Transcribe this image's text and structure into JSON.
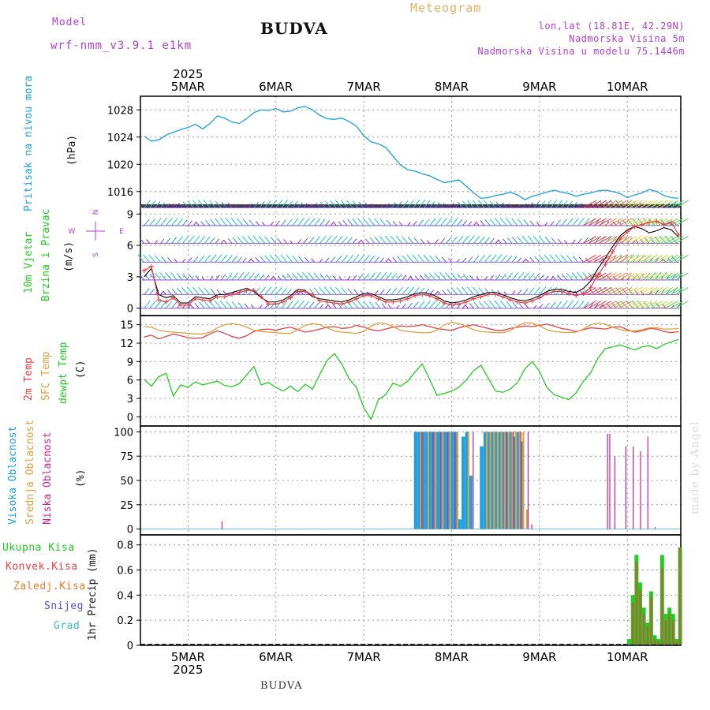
{
  "header": {
    "model_label": "Model",
    "model_name": "wrf-nmm_v3.9.1 e1km",
    "station": "BUDVA",
    "chart_kind": "Meteogram",
    "coords": "lon,lat (18.81E, 42.29N)",
    "elevation": "Nadmorska Visina 5m",
    "model_elevation": "Nadmorska Visina u modelu 75.1446m",
    "footer_station": "BUDVA",
    "watermark": "made by Angel"
  },
  "colors": {
    "pressure": "#1ca0e0",
    "wind_speed": "#e84040",
    "wind_gust": "#000000",
    "temp2m": "#e84040",
    "sfc": "#e0a040",
    "dewpt": "#22cc22",
    "high_cloud": "#1ca0e0",
    "mid_cloud": "#e0a040",
    "low_cloud": "#cc2090",
    "total_precip": "#22cc22",
    "conv_precip": "#e84040",
    "frozen": "#f07a2a",
    "snow": "#5050e0",
    "graupel": "#30c0c0",
    "purple_text": "#b040d0",
    "wind_label": "#22cc22"
  },
  "chart_data": [
    {
      "type": "line",
      "name": "pressure",
      "year_label": "2025",
      "x_tick_labels": [
        "5MAR",
        "6MAR",
        "7MAR",
        "8MAR",
        "9MAR",
        "10MAR"
      ],
      "ylim": [
        1014,
        1030
      ],
      "yticks": [
        "1016",
        "1020",
        "1024",
        "1028"
      ],
      "axis_labels": [
        "Pritisak na nivou mora",
        "(hPa)"
      ],
      "grid": true,
      "x_hours_from_5MAR_00": [
        -12,
        -10,
        -8,
        -6,
        -4,
        -2,
        0,
        2,
        4,
        6,
        8,
        10,
        12,
        14,
        16,
        18,
        20,
        22,
        24,
        26,
        28,
        30,
        32,
        34,
        36,
        38,
        40,
        42,
        44,
        46,
        48,
        50,
        52,
        54,
        56,
        58,
        60,
        62,
        64,
        66,
        68,
        70,
        72,
        74,
        76,
        78,
        80,
        82,
        84,
        86,
        88,
        90,
        92,
        94,
        96,
        98,
        100,
        102,
        104,
        106,
        108,
        110,
        112,
        114,
        116,
        118,
        120,
        122,
        124,
        126,
        128,
        130,
        132,
        134
      ],
      "values": [
        1024.1,
        1023.4,
        1023.6,
        1024.3,
        1024.7,
        1025.1,
        1025.4,
        1025.9,
        1025.2,
        1026.0,
        1027.1,
        1026.8,
        1026.2,
        1026.0,
        1026.7,
        1027.6,
        1028.0,
        1027.9,
        1028.2,
        1027.7,
        1027.8,
        1028.3,
        1028.5,
        1028.0,
        1027.2,
        1026.7,
        1026.6,
        1026.8,
        1026.3,
        1025.6,
        1024.2,
        1023.3,
        1023.0,
        1022.5,
        1021.2,
        1019.9,
        1019.2,
        1019.0,
        1018.6,
        1018.3,
        1017.8,
        1017.3,
        1017.5,
        1017.7,
        1016.8,
        1015.8,
        1015.0,
        1015.1,
        1015.4,
        1015.6,
        1015.9,
        1015.5,
        1014.8,
        1015.3,
        1015.6,
        1015.9,
        1016.2,
        1015.9,
        1015.7,
        1015.3,
        1015.6,
        1015.8,
        1016.1,
        1016.2,
        1016.0,
        1015.7,
        1015.1,
        1015.5,
        1015.8,
        1016.3,
        1016.0,
        1015.4,
        1015.1,
        1015.0
      ]
    },
    {
      "type": "line",
      "name": "wind",
      "ylim": [
        -0.7,
        9.7
      ],
      "yticks": [
        "0",
        "3",
        "6",
        "9"
      ],
      "axis_labels": [
        "10m Vjetar",
        "Brzina i Pravac",
        "(m/s)"
      ],
      "compass": {
        "n": "N",
        "s": "S",
        "w": "W",
        "e": "E"
      },
      "grid": true,
      "barb_levels_ms": [
        0,
        1.3,
        2.7,
        4.4,
        6.2,
        7.9,
        9.6
      ],
      "series": [
        {
          "name": "speed",
          "values": [
            3.6,
            4.0,
            0.8,
            0.6,
            1.0,
            0.3,
            0.3,
            0.9,
            0.8,
            0.7,
            1.1,
            1.1,
            1.3,
            1.5,
            1.7,
            1.7,
            1.1,
            0.4,
            0.4,
            0.6,
            1.0,
            1.6,
            1.6,
            1.3,
            0.7,
            0.6,
            0.5,
            0.4,
            0.6,
            0.9,
            1.2,
            1.2,
            0.9,
            0.6,
            0.6,
            0.7,
            0.9,
            1.2,
            1.3,
            1.2,
            0.9,
            0.5,
            0.3,
            0.4,
            0.6,
            0.9,
            1.1,
            1.3,
            1.3,
            1.1,
            0.8,
            0.6,
            0.5,
            0.7,
            1.0,
            1.4,
            1.6,
            1.6,
            1.4,
            1.2,
            1.4,
            2.0,
            3.2,
            4.2,
            5.4,
            6.6,
            7.3,
            7.8,
            8.0,
            8.2,
            8.3,
            8.0,
            8.2,
            7.0
          ]
        },
        {
          "name": "gust",
          "values": [
            3.0,
            3.8,
            1.3,
            1.0,
            1.2,
            0.5,
            0.5,
            1.1,
            1.0,
            0.9,
            1.3,
            1.3,
            1.5,
            1.7,
            1.9,
            1.6,
            1.0,
            0.6,
            0.6,
            0.8,
            1.2,
            1.8,
            1.7,
            1.1,
            0.9,
            0.8,
            0.7,
            0.6,
            0.8,
            1.1,
            1.4,
            1.4,
            1.1,
            0.8,
            0.8,
            0.9,
            1.1,
            1.4,
            1.5,
            1.4,
            1.1,
            0.7,
            0.5,
            0.6,
            0.8,
            1.1,
            1.3,
            1.5,
            1.5,
            1.3,
            1.0,
            0.8,
            0.7,
            0.9,
            1.2,
            1.6,
            1.8,
            1.8,
            1.6,
            1.5,
            1.9,
            2.6,
            3.8,
            4.8,
            5.9,
            6.9,
            7.5,
            7.8,
            7.6,
            7.2,
            7.4,
            7.7,
            7.5,
            6.8
          ]
        }
      ]
    },
    {
      "type": "line",
      "name": "temperature",
      "ylim": [
        -1.5,
        16.5
      ],
      "yticks": [
        "0",
        "3",
        "6",
        "9",
        "12",
        "15"
      ],
      "axis_labels": [
        "2m Temp",
        "SFC Temp",
        "dewpt Temp",
        "(C)"
      ],
      "grid": true,
      "series": [
        {
          "name": "2m Temp",
          "values": [
            13.0,
            13.3,
            12.7,
            13.1,
            13.5,
            13.2,
            12.9,
            12.8,
            12.9,
            13.5,
            14.0,
            13.6,
            13.1,
            12.8,
            13.2,
            13.9,
            14.2,
            14.3,
            14.1,
            14.4,
            14.6,
            14.2,
            13.8,
            14.0,
            14.3,
            14.6,
            14.7,
            14.4,
            14.5,
            14.9,
            14.6,
            14.2,
            14.0,
            14.3,
            14.6,
            14.8,
            14.7,
            14.8,
            15.0,
            14.7,
            14.4,
            14.2,
            14.1,
            14.5,
            14.8,
            15.0,
            14.7,
            14.4,
            14.1,
            14.1,
            14.4,
            14.6,
            14.8,
            14.7,
            14.9,
            15.1,
            14.8,
            14.4,
            14.2,
            13.9,
            14.2,
            14.5,
            14.4,
            14.3,
            14.6,
            14.7,
            14.2,
            13.8,
            14.0,
            14.4,
            14.3,
            13.9,
            13.7,
            13.9
          ]
        },
        {
          "name": "SFC Temp",
          "values": [
            14.7,
            14.6,
            14.1,
            13.9,
            13.8,
            13.7,
            13.6,
            13.5,
            13.5,
            13.8,
            14.5,
            15.0,
            15.2,
            15.0,
            14.6,
            14.1,
            13.9,
            13.8,
            13.7,
            13.6,
            13.6,
            14.2,
            14.9,
            15.2,
            15.0,
            14.5,
            14.0,
            13.8,
            13.7,
            13.6,
            13.9,
            14.8,
            15.3,
            15.2,
            14.7,
            14.1,
            13.9,
            13.8,
            13.7,
            13.7,
            14.1,
            15.0,
            15.4,
            15.2,
            14.7,
            14.2,
            13.9,
            13.8,
            13.7,
            13.7,
            14.0,
            14.8,
            15.3,
            15.3,
            14.8,
            14.2,
            13.9,
            13.8,
            13.7,
            13.8,
            14.3,
            15.0,
            15.3,
            15.1,
            14.6,
            14.2,
            14.0,
            14.0,
            14.2,
            14.5,
            14.5,
            14.3,
            14.3,
            14.4
          ]
        },
        {
          "name": "dewpt Temp",
          "values": [
            6.1,
            5.0,
            6.5,
            7.1,
            3.4,
            5.2,
            4.8,
            5.7,
            5.2,
            5.5,
            5.8,
            5.1,
            4.9,
            5.4,
            6.8,
            8.2,
            5.2,
            5.6,
            4.8,
            4.2,
            5.0,
            4.1,
            5.3,
            4.5,
            6.9,
            9.2,
            10.3,
            8.6,
            6.2,
            4.8,
            1.5,
            -0.4,
            2.8,
            3.6,
            5.5,
            5.0,
            5.8,
            7.3,
            8.6,
            6.1,
            3.5,
            3.8,
            4.2,
            4.8,
            6.0,
            7.5,
            8.4,
            6.3,
            4.2,
            4.0,
            4.5,
            5.6,
            7.8,
            9.0,
            7.4,
            4.8,
            3.6,
            3.2,
            2.8,
            3.9,
            5.8,
            7.2,
            9.6,
            11.1,
            11.4,
            11.7,
            11.3,
            10.9,
            11.4,
            11.6,
            11.1,
            11.8,
            12.2,
            12.6
          ]
        }
      ]
    },
    {
      "type": "bar",
      "name": "cloud",
      "ylim": [
        -6,
        106
      ],
      "yticks": [
        "0",
        "25",
        "50",
        "75",
        "100"
      ],
      "axis_labels": [
        "Visoka Oblacnost",
        "Srednja Oblacnost",
        "Niska Oblacnost",
        "(%)"
      ],
      "grid": true,
      "series": [
        {
          "name": "Visoka Oblacnost",
          "x_hours": [
            62.2,
            63.2,
            64.2,
            65.2,
            66.2,
            67.2,
            68.2,
            69.2,
            70.2,
            71.2,
            72.2,
            73.2,
            74.2,
            75.2,
            76.2,
            77.2,
            80.2,
            81.2,
            82.2,
            83.2,
            84.2,
            85.2,
            86.2,
            87.2,
            88.2,
            89.2,
            90.2,
            91.2
          ],
          "values": [
            100,
            100,
            100,
            100,
            100,
            100,
            100,
            100,
            100,
            100,
            100,
            100,
            10,
            95,
            100,
            55,
            85,
            100,
            100,
            100,
            100,
            100,
            100,
            100,
            100,
            95,
            100,
            90
          ]
        },
        {
          "name": "Srednja Oblacnost",
          "x_hours": [
            63.6,
            65.6,
            67.6,
            69.6,
            71.6,
            73.6,
            76.6,
            81.6,
            82.6,
            83.6,
            84.6,
            85.6,
            86.6,
            87.6,
            88.6,
            89.6,
            90.6,
            91.6,
            92.6
          ],
          "values": [
            100,
            100,
            100,
            100,
            100,
            100,
            100,
            100,
            100,
            100,
            100,
            100,
            100,
            100,
            100,
            100,
            100,
            100,
            20
          ]
        },
        {
          "name": "Niska Oblacnost",
          "x_hours": [
            9.3,
            63.9,
            66.9,
            68.9,
            70.9,
            72.9,
            77.9,
            86.9,
            88.9,
            90.9,
            92.9,
            93.9,
            114.6,
            115.2,
            116.6,
            119.6,
            121.6,
            123.6,
            125.6,
            127.6
          ],
          "values": [
            8,
            100,
            100,
            100,
            100,
            100,
            100,
            100,
            100,
            100,
            100,
            5,
            98,
            98,
            75,
            85,
            85,
            80,
            95,
            2
          ]
        }
      ]
    },
    {
      "type": "bar",
      "name": "precipitation",
      "ylim": [
        0,
        0.88
      ],
      "yticks": [
        "0",
        "0.2",
        "0.4",
        "0.6",
        "0.8"
      ],
      "axis_labels": [
        "Ukupna Kisa",
        "Konvek.Kisa",
        "Zaledj.Kisa",
        "Snijeg",
        "Grad",
        "1hr Precip (mm)"
      ],
      "grid": true,
      "x_hours": [
        120.5,
        121.5,
        122.5,
        123.5,
        124.5,
        125.5,
        126.5,
        127.5,
        128.5,
        129.5,
        130.5,
        131.5,
        132.5,
        133.5,
        134.4
      ],
      "series": [
        {
          "name": "Ukupna Kisa",
          "values": [
            0.05,
            0.4,
            0.72,
            0.5,
            0.3,
            0.18,
            0.43,
            0.08,
            0.05,
            0.72,
            0.25,
            0.3,
            0.25,
            0.05,
            0.78
          ]
        },
        {
          "name": "Konvek.Kisa",
          "values": [
            0.0,
            0.34,
            0.66,
            0.44,
            0.25,
            0.15,
            0.38,
            0.05,
            0.03,
            0.62,
            0.2,
            0.25,
            0.2,
            0.03,
            0.78
          ]
        }
      ]
    }
  ]
}
